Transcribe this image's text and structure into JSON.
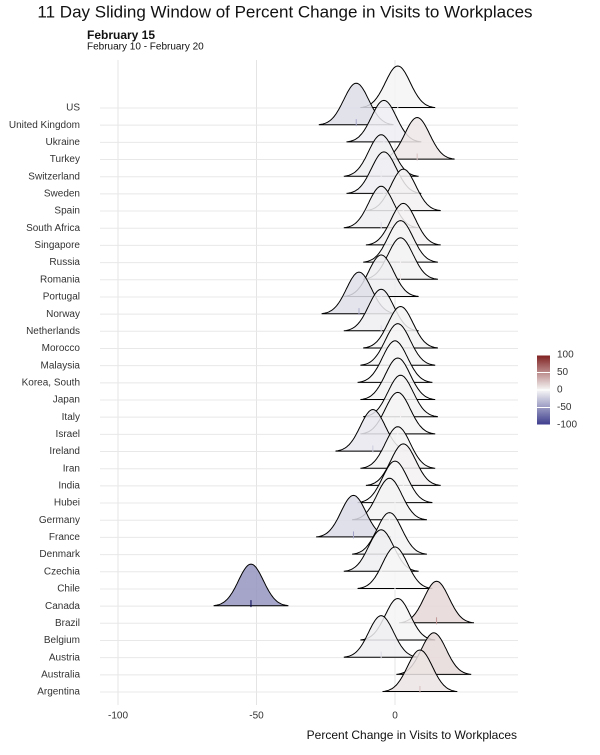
{
  "chart_data": {
    "type": "ridgeline",
    "title": "11 Day Sliding Window of Percent Change in Visits to Workplaces",
    "subtitle": "February 15",
    "caption": "February 10 - February 20",
    "x_label": "Percent Change in Visits to Workplaces",
    "categories": [
      "US",
      "United Kingdom",
      "Ukraine",
      "Turkey",
      "Switzerland",
      "Sweden",
      "Spain",
      "South Africa",
      "Singapore",
      "Russia",
      "Romania",
      "Portugal",
      "Norway",
      "Netherlands",
      "Morocco",
      "Malaysia",
      "Korea, South",
      "Japan",
      "Italy",
      "Israel",
      "Ireland",
      "Iran",
      "India",
      "Hubei",
      "Germany",
      "France",
      "Denmark",
      "Czechia",
      "Chile",
      "Canada",
      "Brazil",
      "Belgium",
      "Austria",
      "Australia",
      "Argentina"
    ],
    "values": [
      1,
      -14,
      -4,
      8,
      -5,
      -4,
      3,
      -5,
      3,
      2,
      2,
      -5,
      -13,
      -5,
      2,
      1,
      0,
      1,
      2,
      1,
      -8,
      1,
      3,
      0,
      -2,
      -15,
      -2,
      -5,
      0,
      -52,
      15,
      1,
      -5,
      14,
      9
    ],
    "xlim": [
      -106.5,
      44.4
    ],
    "xticks": [
      -100,
      -50,
      0
    ],
    "grid": true,
    "color_scale": {
      "low": "#3b3b8c",
      "mid": "#f7f7f7",
      "high": "#7f1f1f"
    },
    "clim": [
      -100,
      100
    ],
    "cticks": [
      100,
      50,
      0,
      -50,
      -100
    ]
  }
}
